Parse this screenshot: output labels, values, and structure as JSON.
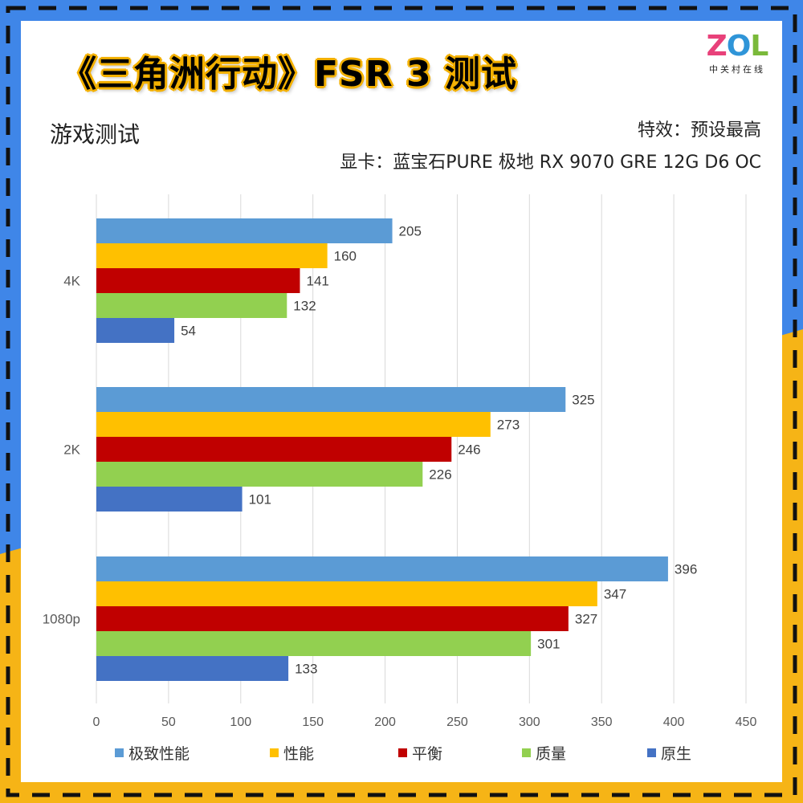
{
  "header": {
    "title": "《三角洲行动》FSR 3 测试",
    "logo_text_z": "Z",
    "logo_text_o": "O",
    "logo_text_l": "L",
    "logo_sub": "中关村在线",
    "subtitle": "游戏测试",
    "note_effects": "特效：预设最高",
    "note_gpu": "显卡：蓝宝石PURE 极地 RX 9070 GRE 12G D6 OC"
  },
  "colors": {
    "frame_blue": "#3f86e8",
    "frame_yellow": "#f6b416",
    "dash": "#111111"
  },
  "chart_data": {
    "type": "bar",
    "orientation": "horizontal",
    "categories": [
      "4K",
      "2K",
      "1080p"
    ],
    "series": [
      {
        "name": "极致性能",
        "color": "#5b9bd5",
        "values": [
          205,
          325,
          396
        ]
      },
      {
        "name": "性能",
        "color": "#ffc000",
        "values": [
          160,
          273,
          347
        ]
      },
      {
        "name": "平衡",
        "color": "#c00000",
        "values": [
          141,
          246,
          327
        ]
      },
      {
        "name": "质量",
        "color": "#92d050",
        "values": [
          132,
          226,
          301
        ]
      },
      {
        "name": "原生",
        "color": "#4472c4",
        "values": [
          54,
          101,
          133
        ]
      }
    ],
    "xlim": [
      0,
      450
    ],
    "xticks": [
      0,
      50,
      100,
      150,
      200,
      250,
      300,
      350,
      400,
      450
    ],
    "grid": true,
    "legend_position": "bottom"
  }
}
